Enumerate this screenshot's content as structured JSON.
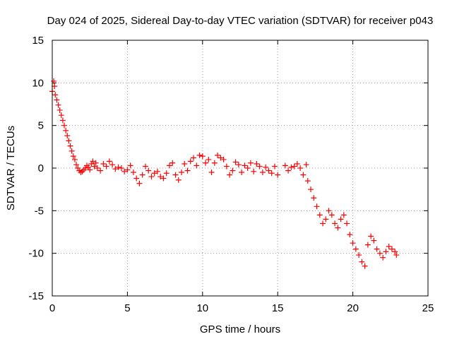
{
  "chart_data": {
    "type": "scatter",
    "title": "Day 024 of 2025, Sidereal Day-to-day VTEC variation (SDTVAR) for receiver p043",
    "xlabel": "GPS time / hours",
    "ylabel": "SDTVAR / TECUs",
    "xlim": [
      0,
      25
    ],
    "ylim": [
      -15,
      15
    ],
    "xticks": [
      0,
      5,
      10,
      15,
      20,
      25
    ],
    "yticks": [
      -15,
      -10,
      -5,
      0,
      5,
      10,
      15
    ],
    "xtick_labels": [
      "0",
      "5",
      "10",
      "15",
      "20",
      "25"
    ],
    "ytick_labels": [
      "-15",
      "-10",
      "-5",
      "0",
      "5",
      "10",
      "15"
    ],
    "grid": true,
    "marker": "plus",
    "color": "#ff0000",
    "series": [
      {
        "name": "SDTVAR",
        "x": [
          0.0,
          0.1,
          0.15,
          0.2,
          0.3,
          0.4,
          0.5,
          0.6,
          0.7,
          0.8,
          0.9,
          1.0,
          1.1,
          1.2,
          1.3,
          1.4,
          1.5,
          1.6,
          1.7,
          1.8,
          1.9,
          2.0,
          2.1,
          2.2,
          2.3,
          2.4,
          2.5,
          2.6,
          2.7,
          2.8,
          2.9,
          3.0,
          3.2,
          3.4,
          3.6,
          3.8,
          4.0,
          4.2,
          4.4,
          4.6,
          4.8,
          5.0,
          5.2,
          5.4,
          5.6,
          5.8,
          6.0,
          6.2,
          6.4,
          6.6,
          6.8,
          7.0,
          7.2,
          7.4,
          7.6,
          7.8,
          8.0,
          8.2,
          8.4,
          8.6,
          8.8,
          9.0,
          9.2,
          9.4,
          9.6,
          9.8,
          10.0,
          10.2,
          10.4,
          10.6,
          10.8,
          11.0,
          11.2,
          11.4,
          11.6,
          11.8,
          12.0,
          12.2,
          12.4,
          12.6,
          12.8,
          13.0,
          13.2,
          13.4,
          13.6,
          13.8,
          14.0,
          14.2,
          14.4,
          14.6,
          14.8,
          15.0,
          15.5,
          15.7,
          15.9,
          16.1,
          16.3,
          16.5,
          16.7,
          16.9,
          17.0,
          17.2,
          17.4,
          17.6,
          17.8,
          18.0,
          18.2,
          18.4,
          18.6,
          18.8,
          19.0,
          19.2,
          19.4,
          19.6,
          19.8,
          20.0,
          20.2,
          20.4,
          20.6,
          20.8,
          21.0,
          21.2,
          21.4,
          21.6,
          21.8,
          22.0,
          22.2,
          22.4,
          22.6,
          22.8,
          22.9
        ],
        "y": [
          9.0,
          10.2,
          9.6,
          8.6,
          8.0,
          7.4,
          6.8,
          6.2,
          5.6,
          5.0,
          4.4,
          3.8,
          3.2,
          2.6,
          2.0,
          1.4,
          1.0,
          0.4,
          0.0,
          -0.3,
          -0.5,
          -0.4,
          -0.2,
          0.0,
          0.3,
          0.1,
          -0.2,
          0.5,
          0.8,
          0.2,
          0.6,
          0.0,
          -0.3,
          0.5,
          0.2,
          0.8,
          0.4,
          -0.1,
          0.1,
          0.0,
          -0.4,
          -0.2,
          0.3,
          -0.5,
          -1.2,
          -1.8,
          -0.8,
          0.2,
          -0.3,
          -1.0,
          -0.6,
          -0.4,
          -1.0,
          -1.2,
          -0.6,
          0.3,
          0.6,
          -0.8,
          -1.4,
          -0.5,
          0.5,
          -0.3,
          0.8,
          1.2,
          0.3,
          1.5,
          1.4,
          0.6,
          1.0,
          -0.5,
          0.6,
          1.5,
          1.2,
          1.0,
          0.2,
          -0.8,
          -0.3,
          0.7,
          0.4,
          -0.5,
          0.3,
          0.0,
          0.6,
          -0.4,
          0.5,
          0.2,
          -0.5,
          0.1,
          -0.3,
          -0.6,
          0.2,
          -0.8,
          0.3,
          -0.3,
          0.1,
          0.2,
          0.5,
          0.0,
          -0.8,
          0.4,
          -1.5,
          -2.5,
          -3.5,
          -4.5,
          -5.5,
          -6.5,
          -6.0,
          -5.0,
          -5.5,
          -6.5,
          -7.0,
          -6.0,
          -5.5,
          -6.5,
          -7.8,
          -8.8,
          -9.5,
          -10.2,
          -11.0,
          -11.5,
          -9.0,
          -8.0,
          -8.5,
          -9.5,
          -10.0,
          -10.5,
          -9.8,
          -9.2,
          -9.5,
          -9.8,
          -10.2
        ]
      }
    ]
  }
}
